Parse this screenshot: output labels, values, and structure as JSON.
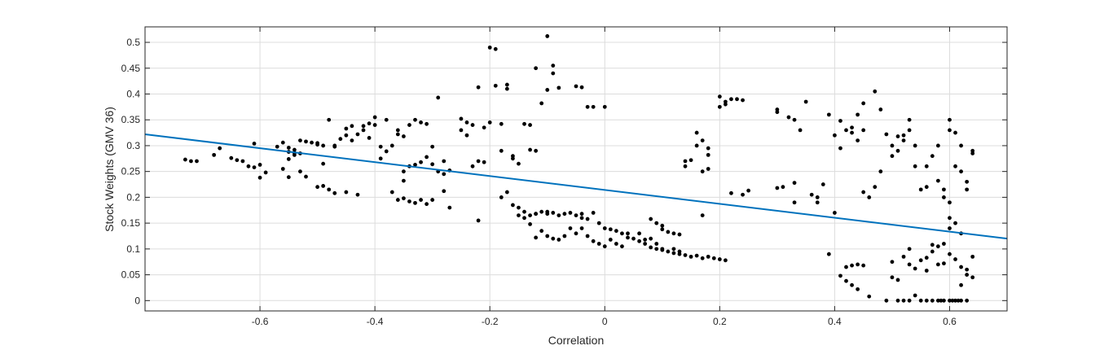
{
  "chart_data": {
    "type": "scatter",
    "xlabel": "Correlation",
    "ylabel": "Stock Weights (GMV 36)",
    "xlim": [
      -0.8,
      0.7
    ],
    "ylim": [
      -0.02,
      0.53
    ],
    "grid": true,
    "colors": {
      "points": "#000000",
      "fit_line": "#0072BD",
      "grid": "#dcdcdc",
      "axes": "#262626"
    },
    "x_ticks": [
      {
        "value": -0.6,
        "label": "-0.6"
      },
      {
        "value": -0.4,
        "label": "-0.4"
      },
      {
        "value": -0.2,
        "label": "-0.2"
      },
      {
        "value": 0,
        "label": "0"
      },
      {
        "value": 0.2,
        "label": "0.2"
      },
      {
        "value": 0.4,
        "label": "0.4"
      },
      {
        "value": 0.6,
        "label": "0.6"
      }
    ],
    "y_ticks": [
      {
        "value": 0,
        "label": "0"
      },
      {
        "value": 0.05,
        "label": "0.05"
      },
      {
        "value": 0.1,
        "label": "0.1"
      },
      {
        "value": 0.15,
        "label": "0.15"
      },
      {
        "value": 0.2,
        "label": "0.2"
      },
      {
        "value": 0.25,
        "label": "0.25"
      },
      {
        "value": 0.3,
        "label": "0.3"
      },
      {
        "value": 0.35,
        "label": "0.35"
      },
      {
        "value": 0.4,
        "label": "0.4"
      },
      {
        "value": 0.45,
        "label": "0.45"
      },
      {
        "value": 0.5,
        "label": "0.5"
      }
    ],
    "fit_line": {
      "x": [
        -0.8,
        0.7
      ],
      "y": [
        0.322,
        0.12
      ]
    },
    "points": [
      [
        -0.73,
        0.273
      ],
      [
        -0.72,
        0.27
      ],
      [
        -0.71,
        0.27
      ],
      [
        -0.68,
        0.282
      ],
      [
        -0.67,
        0.295
      ],
      [
        -0.65,
        0.276
      ],
      [
        -0.64,
        0.272
      ],
      [
        -0.63,
        0.27
      ],
      [
        -0.62,
        0.26
      ],
      [
        -0.61,
        0.258
      ],
      [
        -0.61,
        0.304
      ],
      [
        -0.6,
        0.238
      ],
      [
        -0.6,
        0.263
      ],
      [
        -0.59,
        0.248
      ],
      [
        -0.57,
        0.298
      ],
      [
        -0.56,
        0.306
      ],
      [
        -0.55,
        0.296
      ],
      [
        -0.55,
        0.288
      ],
      [
        -0.54,
        0.282
      ],
      [
        -0.54,
        0.292
      ],
      [
        -0.53,
        0.31
      ],
      [
        -0.53,
        0.285
      ],
      [
        -0.52,
        0.308
      ],
      [
        -0.51,
        0.306
      ],
      [
        -0.5,
        0.305
      ],
      [
        -0.5,
        0.302
      ],
      [
        -0.49,
        0.3
      ],
      [
        -0.49,
        0.265
      ],
      [
        -0.48,
        0.35
      ],
      [
        -0.47,
        0.3
      ],
      [
        -0.47,
        0.298
      ],
      [
        -0.46,
        0.313
      ],
      [
        -0.45,
        0.32
      ],
      [
        -0.45,
        0.333
      ],
      [
        -0.44,
        0.338
      ],
      [
        -0.44,
        0.31
      ],
      [
        -0.43,
        0.322
      ],
      [
        -0.42,
        0.33
      ],
      [
        -0.42,
        0.338
      ],
      [
        -0.41,
        0.343
      ],
      [
        -0.4,
        0.34
      ],
      [
        -0.4,
        0.355
      ],
      [
        -0.39,
        0.298
      ],
      [
        -0.38,
        0.289
      ],
      [
        -0.37,
        0.3
      ],
      [
        -0.36,
        0.33
      ],
      [
        -0.36,
        0.322
      ],
      [
        -0.35,
        0.318
      ],
      [
        -0.55,
        0.274
      ],
      [
        -0.54,
        0.286
      ],
      [
        -0.55,
        0.239
      ],
      [
        -0.56,
        0.255
      ],
      [
        -0.53,
        0.25
      ],
      [
        -0.52,
        0.24
      ],
      [
        -0.5,
        0.22
      ],
      [
        -0.49,
        0.222
      ],
      [
        -0.48,
        0.215
      ],
      [
        -0.47,
        0.208
      ],
      [
        -0.45,
        0.21
      ],
      [
        -0.43,
        0.205
      ],
      [
        -0.41,
        0.315
      ],
      [
        -0.39,
        0.275
      ],
      [
        -0.38,
        0.35
      ],
      [
        -0.37,
        0.21
      ],
      [
        -0.36,
        0.195
      ],
      [
        -0.35,
        0.198
      ],
      [
        -0.34,
        0.192
      ],
      [
        -0.33,
        0.189
      ],
      [
        -0.32,
        0.195
      ],
      [
        -0.31,
        0.187
      ],
      [
        -0.35,
        0.25
      ],
      [
        -0.35,
        0.232
      ],
      [
        -0.34,
        0.26
      ],
      [
        -0.33,
        0.263
      ],
      [
        -0.32,
        0.268
      ],
      [
        -0.31,
        0.278
      ],
      [
        -0.3,
        0.264
      ],
      [
        -0.3,
        0.195
      ],
      [
        -0.29,
        0.25
      ],
      [
        -0.28,
        0.245
      ],
      [
        -0.28,
        0.212
      ],
      [
        -0.27,
        0.18
      ],
      [
        -0.34,
        0.34
      ],
      [
        -0.33,
        0.35
      ],
      [
        -0.32,
        0.345
      ],
      [
        -0.31,
        0.342
      ],
      [
        -0.3,
        0.298
      ],
      [
        -0.29,
        0.393
      ],
      [
        -0.28,
        0.27
      ],
      [
        -0.27,
        0.252
      ],
      [
        -0.25,
        0.352
      ],
      [
        -0.25,
        0.33
      ],
      [
        -0.24,
        0.32
      ],
      [
        -0.24,
        0.345
      ],
      [
        -0.23,
        0.34
      ],
      [
        -0.23,
        0.26
      ],
      [
        -0.22,
        0.27
      ],
      [
        -0.22,
        0.155
      ],
      [
        -0.22,
        0.413
      ],
      [
        -0.21,
        0.335
      ],
      [
        -0.21,
        0.268
      ],
      [
        -0.2,
        0.345
      ],
      [
        -0.2,
        0.49
      ],
      [
        -0.19,
        0.487
      ],
      [
        -0.19,
        0.416
      ],
      [
        -0.18,
        0.342
      ],
      [
        -0.18,
        0.29
      ],
      [
        -0.17,
        0.41
      ],
      [
        -0.17,
        0.418
      ],
      [
        -0.16,
        0.275
      ],
      [
        -0.16,
        0.28
      ],
      [
        -0.15,
        0.265
      ],
      [
        -0.14,
        0.342
      ],
      [
        -0.13,
        0.34
      ],
      [
        -0.13,
        0.292
      ],
      [
        -0.12,
        0.29
      ],
      [
        -0.12,
        0.45
      ],
      [
        -0.11,
        0.382
      ],
      [
        -0.1,
        0.512
      ],
      [
        -0.1,
        0.408
      ],
      [
        -0.09,
        0.44
      ],
      [
        -0.09,
        0.455
      ],
      [
        -0.08,
        0.412
      ],
      [
        -0.05,
        0.415
      ],
      [
        -0.04,
        0.413
      ],
      [
        -0.03,
        0.375
      ],
      [
        -0.02,
        0.375
      ],
      [
        0,
        0.375
      ],
      [
        -0.18,
        0.2
      ],
      [
        -0.17,
        0.21
      ],
      [
        -0.16,
        0.185
      ],
      [
        -0.15,
        0.18
      ],
      [
        -0.15,
        0.165
      ],
      [
        -0.14,
        0.16
      ],
      [
        -0.14,
        0.172
      ],
      [
        -0.13,
        0.165
      ],
      [
        -0.12,
        0.168
      ],
      [
        -0.12,
        0.168
      ],
      [
        -0.11,
        0.172
      ],
      [
        -0.1,
        0.172
      ],
      [
        -0.1,
        0.168
      ],
      [
        -0.09,
        0.17
      ],
      [
        -0.08,
        0.165
      ],
      [
        -0.07,
        0.168
      ],
      [
        -0.06,
        0.17
      ],
      [
        -0.05,
        0.165
      ],
      [
        -0.04,
        0.16
      ],
      [
        -0.04,
        0.168
      ],
      [
        -0.03,
        0.158
      ],
      [
        -0.02,
        0.17
      ],
      [
        -0.01,
        0.15
      ],
      [
        0,
        0.14
      ],
      [
        0.01,
        0.138
      ],
      [
        0.02,
        0.135
      ],
      [
        0.03,
        0.13
      ],
      [
        0.04,
        0.13
      ],
      [
        -0.13,
        0.148
      ],
      [
        -0.12,
        0.122
      ],
      [
        -0.11,
        0.135
      ],
      [
        -0.1,
        0.125
      ],
      [
        -0.09,
        0.12
      ],
      [
        -0.08,
        0.118
      ],
      [
        -0.07,
        0.125
      ],
      [
        -0.06,
        0.14
      ],
      [
        -0.05,
        0.13
      ],
      [
        -0.04,
        0.14
      ],
      [
        -0.03,
        0.125
      ],
      [
        -0.02,
        0.115
      ],
      [
        -0.01,
        0.11
      ],
      [
        0,
        0.105
      ],
      [
        0.01,
        0.118
      ],
      [
        0.02,
        0.11
      ],
      [
        0.03,
        0.105
      ],
      [
        0.04,
        0.122
      ],
      [
        0.05,
        0.12
      ],
      [
        0.06,
        0.115
      ],
      [
        0.07,
        0.11
      ],
      [
        0.08,
        0.103
      ],
      [
        0.09,
        0.1
      ],
      [
        0.1,
        0.098
      ],
      [
        0.11,
        0.095
      ],
      [
        0.12,
        0.092
      ],
      [
        0.13,
        0.09
      ],
      [
        0.14,
        0.088
      ],
      [
        0.15,
        0.085
      ],
      [
        0.16,
        0.087
      ],
      [
        0.17,
        0.082
      ],
      [
        0.18,
        0.085
      ],
      [
        0.19,
        0.082
      ],
      [
        0.2,
        0.08
      ],
      [
        0.21,
        0.078
      ],
      [
        0.08,
        0.158
      ],
      [
        0.09,
        0.15
      ],
      [
        0.1,
        0.145
      ],
      [
        0.1,
        0.138
      ],
      [
        0.11,
        0.133
      ],
      [
        0.12,
        0.13
      ],
      [
        0.13,
        0.128
      ],
      [
        0.06,
        0.13
      ],
      [
        0.07,
        0.118
      ],
      [
        0.08,
        0.12
      ],
      [
        0.09,
        0.11
      ],
      [
        0.1,
        0.1
      ],
      [
        0.12,
        0.1
      ],
      [
        0.13,
        0.095
      ],
      [
        0.14,
        0.27
      ],
      [
        0.14,
        0.26
      ],
      [
        0.15,
        0.272
      ],
      [
        0.16,
        0.3
      ],
      [
        0.16,
        0.325
      ],
      [
        0.17,
        0.31
      ],
      [
        0.17,
        0.25
      ],
      [
        0.17,
        0.165
      ],
      [
        0.18,
        0.295
      ],
      [
        0.18,
        0.282
      ],
      [
        0.18,
        0.255
      ],
      [
        0.2,
        0.395
      ],
      [
        0.2,
        0.375
      ],
      [
        0.21,
        0.385
      ],
      [
        0.21,
        0.38
      ],
      [
        0.22,
        0.39
      ],
      [
        0.23,
        0.39
      ],
      [
        0.24,
        0.388
      ],
      [
        0.22,
        0.208
      ],
      [
        0.24,
        0.205
      ],
      [
        0.25,
        0.213
      ],
      [
        0.3,
        0.37
      ],
      [
        0.3,
        0.365
      ],
      [
        0.3,
        0.218
      ],
      [
        0.31,
        0.22
      ],
      [
        0.32,
        0.355
      ],
      [
        0.33,
        0.35
      ],
      [
        0.34,
        0.33
      ],
      [
        0.33,
        0.228
      ],
      [
        0.33,
        0.19
      ],
      [
        0.35,
        0.385
      ],
      [
        0.36,
        0.205
      ],
      [
        0.37,
        0.19
      ],
      [
        0.37,
        0.2
      ],
      [
        0.38,
        0.225
      ],
      [
        0.39,
        0.36
      ],
      [
        0.4,
        0.32
      ],
      [
        0.41,
        0.295
      ],
      [
        0.41,
        0.348
      ],
      [
        0.42,
        0.33
      ],
      [
        0.43,
        0.335
      ],
      [
        0.43,
        0.325
      ],
      [
        0.44,
        0.36
      ],
      [
        0.45,
        0.382
      ],
      [
        0.44,
        0.31
      ],
      [
        0.45,
        0.33
      ],
      [
        0.4,
        0.17
      ],
      [
        0.45,
        0.21
      ],
      [
        0.46,
        0.2
      ],
      [
        0.47,
        0.22
      ],
      [
        0.48,
        0.25
      ],
      [
        0.47,
        0.405
      ],
      [
        0.48,
        0.37
      ],
      [
        0.49,
        0.322
      ],
      [
        0.5,
        0.3
      ],
      [
        0.5,
        0.28
      ],
      [
        0.51,
        0.318
      ],
      [
        0.51,
        0.29
      ],
      [
        0.52,
        0.31
      ],
      [
        0.52,
        0.32
      ],
      [
        0.53,
        0.35
      ],
      [
        0.53,
        0.33
      ],
      [
        0.54,
        0.3
      ],
      [
        0.54,
        0.26
      ],
      [
        0.55,
        0.215
      ],
      [
        0.56,
        0.22
      ],
      [
        0.56,
        0.26
      ],
      [
        0.57,
        0.28
      ],
      [
        0.58,
        0.3
      ],
      [
        0.58,
        0.232
      ],
      [
        0.59,
        0.215
      ],
      [
        0.6,
        0.35
      ],
      [
        0.6,
        0.33
      ],
      [
        0.61,
        0.325
      ],
      [
        0.62,
        0.3
      ],
      [
        0.61,
        0.26
      ],
      [
        0.62,
        0.25
      ],
      [
        0.63,
        0.23
      ],
      [
        0.64,
        0.29
      ],
      [
        0.64,
        0.285
      ],
      [
        0.63,
        0.215
      ],
      [
        0.59,
        0.2
      ],
      [
        0.6,
        0.19
      ],
      [
        0.6,
        0.16
      ],
      [
        0.61,
        0.15
      ],
      [
        0.62,
        0.13
      ],
      [
        0.6,
        0.14
      ],
      [
        0.39,
        0.09
      ],
      [
        0.41,
        0.048
      ],
      [
        0.42,
        0.065
      ],
      [
        0.42,
        0.038
      ],
      [
        0.43,
        0.068
      ],
      [
        0.43,
        0.03
      ],
      [
        0.44,
        0.022
      ],
      [
        0.44,
        0.07
      ],
      [
        0.45,
        0.068
      ],
      [
        0.46,
        0.008
      ],
      [
        0.5,
        0.075
      ],
      [
        0.5,
        0.045
      ],
      [
        0.51,
        0.04
      ],
      [
        0.52,
        0.085
      ],
      [
        0.53,
        0.1
      ],
      [
        0.53,
        0.07
      ],
      [
        0.54,
        0.062
      ],
      [
        0.54,
        0.01
      ],
      [
        0.55,
        0.078
      ],
      [
        0.56,
        0.058
      ],
      [
        0.56,
        0.083
      ],
      [
        0.57,
        0.108
      ],
      [
        0.57,
        0.095
      ],
      [
        0.58,
        0.105
      ],
      [
        0.58,
        0.07
      ],
      [
        0.59,
        0.072
      ],
      [
        0.59,
        0.11
      ],
      [
        0.6,
        0.09
      ],
      [
        0.61,
        0.08
      ],
      [
        0.62,
        0.065
      ],
      [
        0.63,
        0.06
      ],
      [
        0.63,
        0.05
      ],
      [
        0.64,
        0.085
      ],
      [
        0.64,
        0.045
      ],
      [
        0.62,
        0.03
      ],
      [
        0.49,
        0
      ],
      [
        0.51,
        0
      ],
      [
        0.52,
        0
      ],
      [
        0.53,
        0
      ],
      [
        0.55,
        0
      ],
      [
        0.56,
        0
      ],
      [
        0.57,
        0
      ],
      [
        0.58,
        0
      ],
      [
        0.585,
        0
      ],
      [
        0.59,
        0
      ],
      [
        0.6,
        0
      ],
      [
        0.605,
        0
      ],
      [
        0.61,
        0
      ],
      [
        0.615,
        0
      ],
      [
        0.62,
        0
      ],
      [
        0.63,
        0
      ]
    ]
  }
}
